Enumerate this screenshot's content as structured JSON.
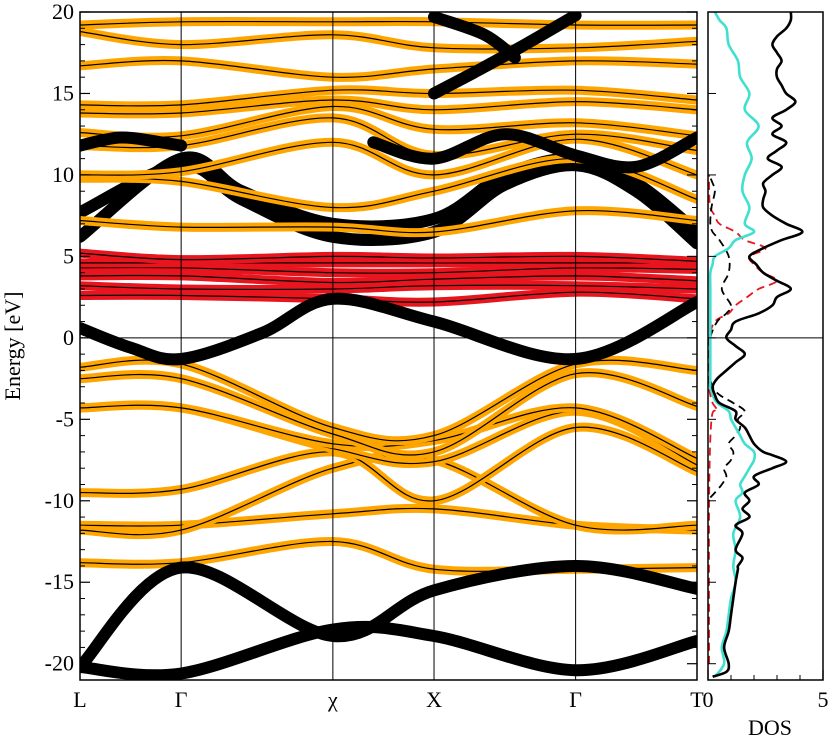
{
  "chart_data": [
    {
      "type": "line",
      "panel": "band-structure",
      "title": "",
      "ylabel": "Energy [eV]",
      "xlabel": "",
      "ylim": [
        -21,
        20
      ],
      "y_ticks": [
        -20,
        -15,
        -10,
        -5,
        0,
        5,
        10,
        15,
        20
      ],
      "y_tick_labels": [
        "-20",
        "-15",
        "-10",
        "-5",
        "0",
        "5",
        "10",
        "15",
        "20"
      ],
      "k_points": [
        {
          "label": "L",
          "k": 0
        },
        {
          "label": "Γ",
          "k": 1
        },
        {
          "label": "χ",
          "k": 2.5
        },
        {
          "label": "X",
          "k": 3.5
        },
        {
          "label": "Γ",
          "k": 4.9
        },
        {
          "label": "T",
          "k": 6.1
        }
      ],
      "kmax": 6.1,
      "fermi_level": 0,
      "grid": "vertical lines at high-symmetry points",
      "colors": {
        "band": "#000000",
        "orange": "#ffa500",
        "red": "#e8141e",
        "black": "#000000"
      },
      "bands": [
        {
          "weight": "orange",
          "k": [
            0,
            1,
            2.5,
            3.5,
            4.9,
            6.1
          ],
          "e": [
            -13.8,
            -13.8,
            -12.5,
            -14.2,
            -14.2,
            -14.1
          ]
        },
        {
          "weight": "orange",
          "k": [
            0,
            1,
            2.5,
            3.5,
            4.9,
            6.1
          ],
          "e": [
            -11.5,
            -11.5,
            -10.8,
            -10.5,
            -11.5,
            -11.8
          ]
        },
        {
          "weight": "orange",
          "k": [
            0,
            1,
            2.5,
            3.5,
            4.9,
            6.1
          ],
          "e": [
            -11.8,
            -11.8,
            -8.0,
            -7.5,
            -11.5,
            -11.5
          ]
        },
        {
          "weight": "orange",
          "k": [
            0,
            1,
            2.5,
            3.5,
            4.9,
            6.1
          ],
          "e": [
            -9.5,
            -9.3,
            -7.0,
            -10.0,
            -5.5,
            -8.2
          ]
        },
        {
          "weight": "orange",
          "k": [
            0,
            1,
            2.5,
            3.5,
            4.9,
            6.1
          ],
          "e": [
            -4.3,
            -4.3,
            -6.8,
            -7.6,
            -4.5,
            -7.8
          ]
        },
        {
          "weight": "orange",
          "k": [
            0,
            1,
            2.5,
            3.5,
            4.9,
            6.1
          ],
          "e": [
            -4.3,
            -4.3,
            -6.5,
            -6.3,
            -4.3,
            -7.4
          ]
        },
        {
          "weight": "orange",
          "k": [
            0,
            1,
            2.5,
            3.5,
            4.9,
            6.1
          ],
          "e": [
            -2.5,
            -2.5,
            -5.9,
            -7.0,
            -2.2,
            -4.2
          ]
        },
        {
          "weight": "orange",
          "k": [
            0,
            1,
            2.5,
            3.5,
            4.9,
            6.1
          ],
          "e": [
            -1.8,
            -1.6,
            -5.5,
            -6.0,
            -1.6,
            -2.0
          ]
        },
        {
          "weight": "black",
          "k": [
            0,
            1,
            2.5,
            3.5,
            4.9,
            6.1
          ],
          "e": [
            -20.2,
            -20.6,
            -17.9,
            -18.3,
            -20.4,
            -18.6
          ]
        },
        {
          "weight": "black",
          "k": [
            0,
            1,
            2.5,
            3.5,
            4.9,
            6.1
          ],
          "e": [
            -20.2,
            -14.1,
            -18.3,
            -15.5,
            -14.0,
            -15.4
          ]
        },
        {
          "weight": "red",
          "k": [
            0,
            1,
            2.5,
            3.5,
            4.9,
            6.1
          ],
          "e": [
            2.6,
            2.6,
            2.4,
            2.2,
            2.8,
            2.4
          ]
        },
        {
          "weight": "red",
          "k": [
            0,
            1,
            2.5,
            3.5,
            4.9,
            6.1
          ],
          "e": [
            3.2,
            3.0,
            3.0,
            3.2,
            3.2,
            3.0
          ]
        },
        {
          "weight": "red",
          "k": [
            0,
            1,
            2.5,
            3.5,
            4.9,
            6.1
          ],
          "e": [
            3.8,
            3.8,
            3.4,
            3.6,
            3.8,
            3.5
          ]
        },
        {
          "weight": "red",
          "k": [
            0,
            1,
            2.5,
            3.5,
            4.9,
            6.1
          ],
          "e": [
            4.3,
            4.3,
            4.0,
            4.0,
            4.3,
            4.2
          ]
        },
        {
          "weight": "red",
          "k": [
            0,
            1,
            2.5,
            3.5,
            4.9,
            6.1
          ],
          "e": [
            4.6,
            4.6,
            4.6,
            4.6,
            4.6,
            4.6
          ]
        },
        {
          "weight": "red",
          "k": [
            0,
            1,
            2.5,
            3.5,
            4.9,
            6.1
          ],
          "e": [
            5.2,
            4.8,
            5.0,
            4.9,
            5.0,
            4.7
          ]
        },
        {
          "weight": "black",
          "k": [
            0,
            0.5,
            1,
            1.8,
            2.5,
            3.5,
            4.9,
            6.1
          ],
          "e": [
            0.6,
            -0.6,
            -1.3,
            0.3,
            2.4,
            1.0,
            -1.3,
            2.2
          ]
        },
        {
          "weight": "black",
          "k": [
            0,
            1,
            1.6,
            2.5,
            3.5,
            4.2,
            4.9,
            5.5,
            6.1
          ],
          "e": [
            6.2,
            11.0,
            9.0,
            7.0,
            7.3,
            10.0,
            11.0,
            9.5,
            6.5
          ]
        },
        {
          "weight": "black",
          "k": [
            0,
            1,
            1.6,
            2.5,
            3.5,
            4.2,
            4.9,
            5.5,
            6.1
          ],
          "e": [
            7.7,
            10.6,
            8.5,
            6.2,
            6.5,
            9.4,
            10.6,
            9.0,
            5.8
          ]
        },
        {
          "weight": "orange",
          "k": [
            0,
            1,
            2.5,
            3.5,
            4.9,
            6.1
          ],
          "e": [
            7.2,
            6.8,
            6.8,
            6.5,
            7.8,
            7.2
          ]
        },
        {
          "weight": "orange",
          "k": [
            0,
            1,
            2.5,
            3.5,
            4.9,
            6.1
          ],
          "e": [
            9.8,
            9.6,
            8.0,
            9.0,
            11.0,
            8.5
          ]
        },
        {
          "weight": "orange",
          "k": [
            0,
            1,
            2.5,
            3.5,
            4.9,
            6.1
          ],
          "e": [
            10.0,
            10.2,
            12.0,
            10.0,
            12.2,
            10.0
          ]
        },
        {
          "weight": "orange",
          "k": [
            0,
            1,
            2.5,
            3.5,
            4.9,
            6.1
          ],
          "e": [
            11.8,
            11.8,
            13.5,
            11.2,
            12.5,
            11.5
          ]
        },
        {
          "weight": "orange",
          "k": [
            0,
            1,
            2.5,
            3.5,
            4.9,
            6.1
          ],
          "e": [
            12.6,
            12.4,
            14.2,
            12.8,
            13.2,
            12.4
          ]
        },
        {
          "weight": "orange",
          "k": [
            0,
            1,
            2.5,
            3.5,
            4.9,
            6.1
          ],
          "e": [
            13.8,
            13.8,
            14.6,
            14.0,
            14.5,
            14.0
          ]
        },
        {
          "weight": "orange",
          "k": [
            0,
            1,
            2.5,
            3.5,
            4.9,
            6.1
          ],
          "e": [
            14.3,
            14.3,
            15.2,
            15.0,
            15.2,
            14.6
          ]
        },
        {
          "weight": "orange",
          "k": [
            0,
            1,
            2.5,
            3.5,
            4.9,
            6.1
          ],
          "e": [
            16.7,
            17.0,
            16.0,
            16.5,
            17.0,
            16.8
          ]
        },
        {
          "weight": "orange",
          "k": [
            0,
            1,
            2.5,
            3.5,
            4.9,
            6.1
          ],
          "e": [
            18.8,
            18.0,
            18.6,
            17.8,
            17.8,
            18.2
          ]
        },
        {
          "weight": "orange",
          "k": [
            0,
            1,
            2.5,
            3.5,
            4.9,
            6.1
          ],
          "e": [
            19.2,
            19.4,
            19.4,
            19.4,
            19.2,
            19.2
          ]
        },
        {
          "weight": "black",
          "k": [
            3.5,
            3.9,
            4.4,
            4.9
          ],
          "e": [
            15.0,
            16.3,
            18.0,
            19.8
          ]
        },
        {
          "weight": "black",
          "k": [
            3.5,
            4.0,
            4.3
          ],
          "e": [
            19.7,
            18.6,
            17.2
          ]
        },
        {
          "weight": "black",
          "k": [
            0,
            0.4,
            0.8,
            1.0
          ],
          "e": [
            11.8,
            12.3,
            12.0,
            11.8
          ]
        },
        {
          "weight": "black",
          "k": [
            2.9,
            3.5,
            4.2,
            4.9,
            5.5,
            6.1
          ],
          "e": [
            12.0,
            11.0,
            12.5,
            11.2,
            10.5,
            12.3
          ]
        }
      ]
    },
    {
      "type": "line",
      "panel": "density-of-states",
      "title": "",
      "xlabel": "DOS",
      "ylabel": "",
      "xlim": [
        0,
        5
      ],
      "x_ticks": [
        0,
        5
      ],
      "x_tick_labels": [
        "0",
        "5"
      ],
      "ylim": [
        -21,
        20
      ],
      "colors": {
        "total": "#000000",
        "cyan": "#40e0d0",
        "dashed_black": "#000000",
        "dashed_red": "#e8141e"
      },
      "series": [
        {
          "color": "black",
          "style": "solid",
          "e": [
            -20.8,
            -20.5,
            -20,
            -19,
            -18,
            -17,
            -16,
            -15,
            -14.2,
            -14,
            -13.5,
            -13,
            -12,
            -11.5,
            -11,
            -10.5,
            -10,
            -9.5,
            -9,
            -8.5,
            -8,
            -7.6,
            -7.2,
            -7,
            -6.5,
            -6,
            -5.5,
            -5,
            -4.5,
            -4,
            -3.5,
            -3,
            -2.5,
            -2,
            -1.5,
            -1,
            -0.5,
            0,
            0.5,
            1,
            1.5,
            2,
            2.5,
            3,
            3.5,
            4,
            4.5,
            5,
            5.5,
            6,
            6.5,
            7,
            7.5,
            8,
            8.5,
            9,
            9.5,
            10,
            10.5,
            11,
            11.5,
            12,
            12.5,
            13,
            13.5,
            14,
            14.5,
            15,
            15.5,
            16,
            16.5,
            17,
            17.5,
            18,
            18.5,
            19,
            19.5,
            20
          ],
          "dos": [
            0.2,
            0.8,
            0.9,
            0.7,
            0.9,
            1.0,
            1.1,
            1.2,
            1.3,
            1.3,
            1.5,
            1.2,
            1.5,
            1.2,
            1.8,
            1.5,
            1.8,
            1.6,
            2.2,
            2.0,
            2.8,
            3.4,
            2.8,
            2.4,
            2.0,
            1.8,
            1.6,
            1.2,
            1.2,
            0.5,
            0.3,
            0.2,
            0.4,
            0.8,
            1.2,
            1.6,
            1.2,
            0.8,
            1.0,
            1.2,
            2.2,
            2.8,
            3.0,
            3.6,
            3.0,
            2.4,
            2.1,
            1.8,
            2.4,
            3.2,
            4.1,
            3.4,
            2.8,
            2.4,
            2.4,
            2.5,
            2.4,
            2.8,
            3.2,
            2.6,
            3.0,
            3.4,
            2.8,
            3.2,
            2.8,
            3.4,
            3.8,
            3.4,
            3.2,
            3.0,
            3.0,
            3.2,
            3.0,
            2.8,
            3.0,
            3.4,
            3.6,
            3.6
          ]
        },
        {
          "color": "cyan",
          "style": "solid",
          "e": [
            -20.8,
            -20,
            -19,
            -18,
            -17,
            -16,
            -15,
            -14,
            -13,
            -12,
            -11,
            -10,
            -9.5,
            -9,
            -8.5,
            -8,
            -7.5,
            -7,
            -6.5,
            -6,
            -5.5,
            -5,
            -4.5,
            -4,
            -3.5,
            -3,
            -2.5,
            -2,
            -1.5,
            -1,
            -0.5,
            0,
            1,
            2,
            3,
            4,
            4.5,
            5,
            5.5,
            6,
            6.5,
            7,
            8,
            9,
            10,
            11,
            12,
            13,
            14,
            15,
            16,
            17,
            18,
            19,
            19.5,
            20
          ],
          "dos": [
            0.3,
            0.7,
            0.6,
            0.8,
            0.9,
            1.0,
            1.2,
            1.1,
            1.2,
            1.1,
            1.4,
            1.2,
            1.5,
            1.4,
            1.6,
            1.8,
            2.0,
            2.0,
            1.6,
            1.4,
            1.2,
            1.0,
            0.9,
            0.4,
            0.2,
            0.1,
            0.1,
            0.1,
            0.1,
            0.1,
            0.1,
            0.1,
            0.1,
            0.1,
            0.1,
            0.1,
            0.2,
            0.3,
            0.9,
            1.2,
            2.0,
            1.6,
            1.8,
            1.5,
            1.6,
            1.9,
            1.7,
            2.2,
            1.6,
            1.8,
            1.4,
            1.3,
            0.9,
            0.8,
            0.5,
            0.3
          ]
        },
        {
          "color": "dashed_black",
          "style": "dashed",
          "e": [
            -9.8,
            -9.5,
            -9,
            -8.5,
            -8,
            -7.5,
            -7,
            -6.5,
            -6,
            -5.5,
            -5,
            -4.5,
            -4,
            -3.5,
            -3,
            -2.5,
            -2,
            -1.5,
            -1,
            0,
            1,
            1.5,
            2,
            3,
            4,
            5,
            6,
            6.5,
            7,
            8,
            9,
            9.5,
            10
          ],
          "dos": [
            0.1,
            0.3,
            0.6,
            0.8,
            0.7,
            1.0,
            1.1,
            0.9,
            1.2,
            1.4,
            1.3,
            1.6,
            1.1,
            0.5,
            0.2,
            0.1,
            0.1,
            0.1,
            0.1,
            0.1,
            0.4,
            0.8,
            1.0,
            0.6,
            0.9,
            0.9,
            0.5,
            0.2,
            0.1,
            0.15,
            0.3,
            0.2,
            0.05
          ]
        },
        {
          "color": "dashed_red",
          "style": "dashed",
          "e": [
            -20,
            -10,
            -5,
            -4.5,
            -4,
            -3.5,
            -3,
            -2,
            -1,
            0,
            1,
            1.5,
            2,
            2.5,
            3,
            3.5,
            4,
            4.5,
            5,
            5.5,
            6,
            6.5,
            7,
            7.5,
            8,
            9,
            10
          ],
          "dos": [
            0.05,
            0.05,
            0.15,
            0.4,
            0.2,
            0.1,
            0.05,
            0.05,
            0.05,
            0.05,
            0.3,
            0.9,
            1.2,
            1.7,
            2.2,
            3.0,
            2.4,
            2.0,
            1.8,
            2.5,
            1.6,
            1.2,
            0.5,
            0.3,
            0.1,
            0.05,
            0.05
          ]
        }
      ]
    }
  ]
}
